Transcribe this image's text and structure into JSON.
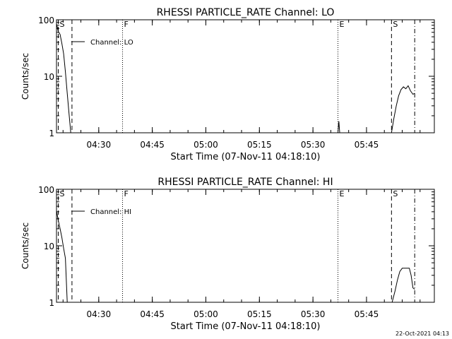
{
  "footer": {
    "timestamp": "22-Oct-2021 04:13"
  },
  "chart_data": [
    {
      "type": "line",
      "title": "RHESSI PARTICLE_RATE Channel: LO",
      "xlabel": "Start Time (07-Nov-11 04:18:10)",
      "ylabel": "Counts/sec",
      "yscale": "log",
      "ylim": [
        1,
        100
      ],
      "xlim": [
        "04:18:10",
        "06:04:00"
      ],
      "x_ticks": [
        "04:30",
        "04:45",
        "05:00",
        "05:15",
        "05:30",
        "05:45"
      ],
      "y_ticks": [
        "1",
        "10",
        "100"
      ],
      "legend": {
        "label": "Channel: LO",
        "placement": "top-left"
      },
      "grid": false,
      "markers": [
        {
          "label": "S",
          "time": "04:18:40",
          "style": "dashed"
        },
        {
          "label": "",
          "time": "04:22:30",
          "style": "dashed"
        },
        {
          "label": "F",
          "time": "04:36:40",
          "style": "dotted"
        },
        {
          "label": "E",
          "time": "05:37:00",
          "style": "dotted"
        },
        {
          "label": "S",
          "time": "05:52:00",
          "style": "dashed"
        },
        {
          "label": "",
          "time": "05:58:30",
          "style": "dashdot"
        }
      ],
      "series": [
        {
          "segments": [
            [
              [
                "04:18:10",
                85
              ],
              [
                "04:18:40",
                62
              ],
              [
                "04:19:10",
                55
              ],
              [
                "04:19:40",
                38
              ],
              [
                "04:20:10",
                25
              ],
              [
                "04:20:40",
                12
              ],
              [
                "04:21:10",
                5
              ],
              [
                "04:21:40",
                2.2
              ],
              [
                "04:22:10",
                1
              ]
            ],
            [
              [
                "05:37:00",
                1
              ],
              [
                "05:37:15",
                1.6
              ],
              [
                "05:37:30",
                1
              ]
            ],
            [
              [
                "05:52:00",
                1
              ],
              [
                "05:52:40",
                1.8
              ],
              [
                "05:53:20",
                3
              ],
              [
                "05:54:00",
                4.5
              ],
              [
                "05:54:40",
                5.8
              ],
              [
                "05:55:20",
                6.5
              ],
              [
                "05:56:00",
                6
              ],
              [
                "05:56:40",
                6.8
              ],
              [
                "05:57:20",
                5.5
              ],
              [
                "05:58:00",
                4.8
              ],
              [
                "05:58:30",
                5
              ]
            ]
          ]
        }
      ]
    },
    {
      "type": "line",
      "title": "RHESSI PARTICLE_RATE Channel: HI",
      "xlabel": "Start Time (07-Nov-11 04:18:10)",
      "ylabel": "Counts/sec",
      "yscale": "log",
      "ylim": [
        1,
        100
      ],
      "xlim": [
        "04:18:10",
        "06:04:00"
      ],
      "x_ticks": [
        "04:30",
        "04:45",
        "05:00",
        "05:15",
        "05:30",
        "05:45"
      ],
      "y_ticks": [
        "1",
        "10",
        "100"
      ],
      "legend": {
        "label": "Channel: HI",
        "placement": "top-left"
      },
      "grid": false,
      "markers": [
        {
          "label": "S",
          "time": "04:18:40",
          "style": "dashed"
        },
        {
          "label": "",
          "time": "04:22:30",
          "style": "dashed"
        },
        {
          "label": "F",
          "time": "04:36:40",
          "style": "dotted"
        },
        {
          "label": "E",
          "time": "05:37:00",
          "style": "dotted"
        },
        {
          "label": "S",
          "time": "05:52:00",
          "style": "dashed"
        },
        {
          "label": "",
          "time": "05:58:30",
          "style": "dashdot"
        }
      ],
      "series": [
        {
          "segments": [
            [
              [
                "04:18:10",
                42
              ],
              [
                "04:18:40",
                28
              ],
              [
                "04:19:10",
                20
              ],
              [
                "04:19:40",
                14
              ],
              [
                "04:20:10",
                9
              ],
              [
                "04:20:40",
                6
              ],
              [
                "04:21:10",
                1
              ]
            ],
            [
              [
                "05:52:10",
                1
              ],
              [
                "05:53:00",
                1.6
              ],
              [
                "05:53:40",
                2.5
              ],
              [
                "05:54:20",
                3.5
              ],
              [
                "05:55:00",
                4
              ],
              [
                "05:56:00",
                4
              ],
              [
                "05:57:00",
                4
              ],
              [
                "05:57:30",
                3
              ],
              [
                "05:58:00",
                1.8
              ],
              [
                "05:58:30",
                1.7
              ]
            ]
          ]
        }
      ]
    }
  ]
}
